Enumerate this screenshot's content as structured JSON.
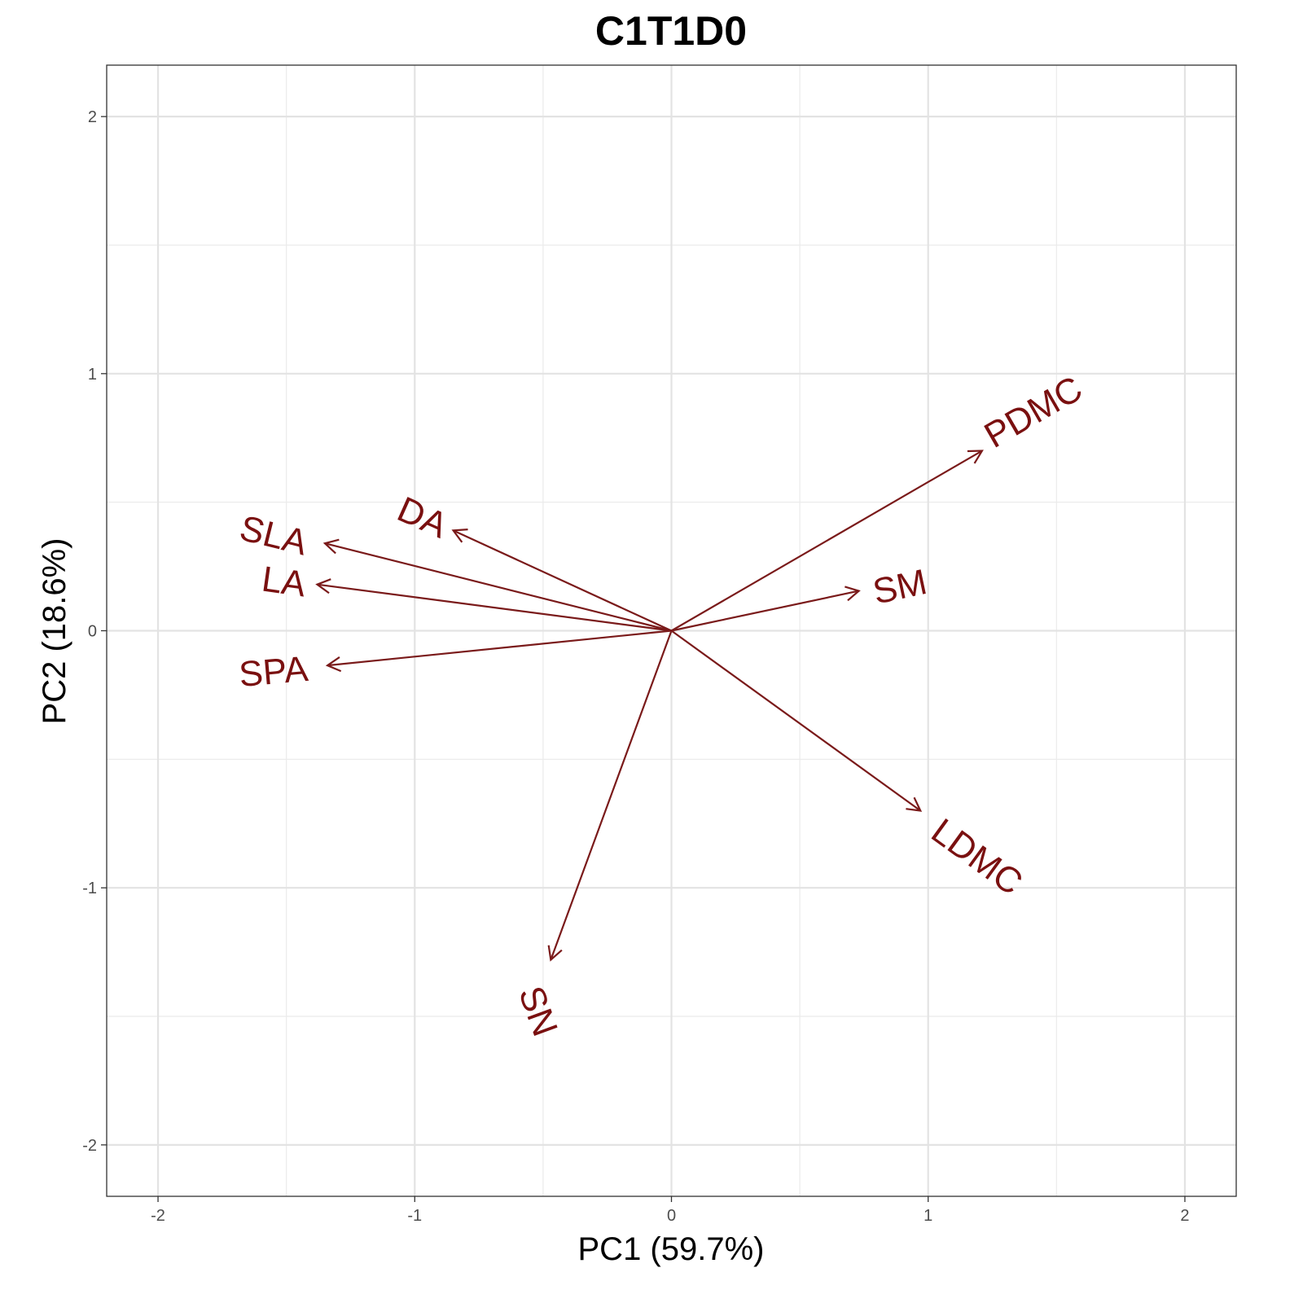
{
  "chart_data": {
    "type": "biplot",
    "title": "C1T1D0",
    "xlabel": "PC1 (59.7%)",
    "ylabel": "PC2 (18.6%)",
    "xlim": [
      -2.2,
      2.2
    ],
    "ylim": [
      -2.2,
      2.2
    ],
    "x_ticks": [
      -2,
      -1,
      0,
      1,
      2
    ],
    "y_ticks": [
      -2,
      -1,
      0,
      1,
      2
    ],
    "grid": true,
    "arrow_color": "#7a1a1a",
    "label_color": "#7a1010",
    "vectors": [
      {
        "name": "PDMC",
        "x": 1.21,
        "y": 0.7,
        "label_x": 1.41,
        "label_y": 0.85,
        "angle": -30
      },
      {
        "name": "SM",
        "x": 0.73,
        "y": 0.155,
        "label_x": 0.89,
        "label_y": 0.17,
        "angle": -12
      },
      {
        "name": "DA",
        "x": -0.85,
        "y": 0.39,
        "label_x": -0.97,
        "label_y": 0.44,
        "angle": 24
      },
      {
        "name": "SLA",
        "x": -1.35,
        "y": 0.34,
        "label_x": -1.55,
        "label_y": 0.37,
        "angle": 14
      },
      {
        "name": "LA",
        "x": -1.38,
        "y": 0.18,
        "label_x": -1.51,
        "label_y": 0.19,
        "angle": 8
      },
      {
        "name": "SPA",
        "x": -1.34,
        "y": -0.135,
        "label_x": -1.55,
        "label_y": -0.16,
        "angle": -5
      },
      {
        "name": "LDMC",
        "x": 0.97,
        "y": -0.7,
        "label_x": 1.19,
        "label_y": -0.88,
        "angle": 36
      },
      {
        "name": "SN",
        "x": -0.47,
        "y": -1.28,
        "label_x": -0.52,
        "label_y": -1.48,
        "angle": 70
      }
    ]
  }
}
